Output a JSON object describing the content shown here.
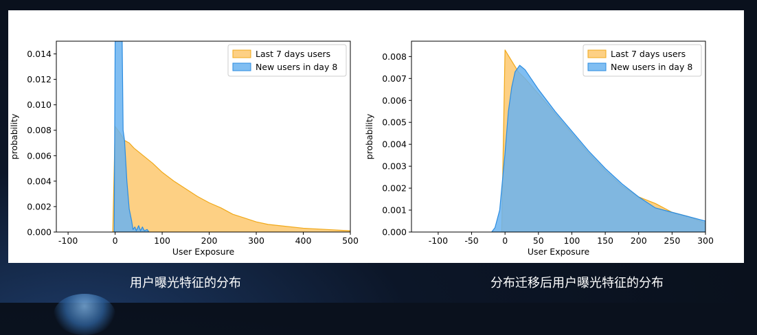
{
  "captions": {
    "left": "用户曝光特征的分布",
    "right": "分布迁移后用户曝光特征的分布"
  },
  "colors": {
    "orange_fill": "#fdc86e",
    "orange_line": "#f0a818",
    "blue_fill": "#6ab3f0",
    "blue_line": "#2b8ce0"
  },
  "chart_data": [
    {
      "type": "area",
      "xlabel": "User Exposure",
      "ylabel": "probability",
      "xlim": [
        -125,
        500
      ],
      "ylim": [
        0,
        0.015
      ],
      "xticks": [
        -100,
        0,
        100,
        200,
        300,
        400,
        500
      ],
      "xtick_labels": [
        "-100",
        "0",
        "100",
        "200",
        "300",
        "400",
        "500"
      ],
      "yticks": [
        0,
        0.002,
        0.004,
        0.006,
        0.008,
        0.01,
        0.012,
        0.014
      ],
      "ytick_labels": [
        "0.000",
        "0.002",
        "0.004",
        "0.006",
        "0.008",
        "0.010",
        "0.012",
        "0.014"
      ],
      "legend_position": "top-right",
      "series": [
        {
          "name": "Last 7 days users",
          "color_key": "orange",
          "points": [
            [
              -5,
              0
            ],
            [
              0,
              0.0083
            ],
            [
              10,
              0.0078
            ],
            [
              20,
              0.0072
            ],
            [
              30,
              0.007
            ],
            [
              40,
              0.0066
            ],
            [
              60,
              0.006
            ],
            [
              80,
              0.0054
            ],
            [
              100,
              0.0047
            ],
            [
              125,
              0.004
            ],
            [
              150,
              0.0034
            ],
            [
              175,
              0.0028
            ],
            [
              200,
              0.0023
            ],
            [
              225,
              0.0019
            ],
            [
              250,
              0.0014
            ],
            [
              275,
              0.0011
            ],
            [
              300,
              0.0008
            ],
            [
              325,
              0.0006
            ],
            [
              350,
              0.0005
            ],
            [
              400,
              0.0003
            ],
            [
              450,
              0.0002
            ],
            [
              500,
              0.0001
            ],
            [
              500,
              0
            ]
          ]
        },
        {
          "name": "New users in day 8",
          "color_key": "blue",
          "points": [
            [
              -2,
              0
            ],
            [
              0,
              0.015
            ],
            [
              15,
              0.015
            ],
            [
              17,
              0.008
            ],
            [
              20,
              0.0072
            ],
            [
              25,
              0.004
            ],
            [
              30,
              0.0018
            ],
            [
              35,
              0.0009
            ],
            [
              38,
              0.0002
            ],
            [
              42,
              0.0004
            ],
            [
              45,
              0.0001
            ],
            [
              50,
              0.0005
            ],
            [
              54,
              0.0001
            ],
            [
              58,
              0.0004
            ],
            [
              62,
              0.0001
            ],
            [
              68,
              0.0002
            ],
            [
              72,
              0
            ]
          ]
        }
      ]
    },
    {
      "type": "area",
      "xlabel": "User Exposure",
      "ylabel": "probability",
      "xlim": [
        -140,
        300
      ],
      "ylim": [
        0,
        0.0087
      ],
      "xticks": [
        -100,
        -50,
        0,
        50,
        100,
        150,
        200,
        250,
        300
      ],
      "xtick_labels": [
        "-100",
        "-50",
        "0",
        "50",
        "100",
        "150",
        "200",
        "250",
        "300"
      ],
      "yticks": [
        0,
        0.001,
        0.002,
        0.003,
        0.004,
        0.005,
        0.006,
        0.007,
        0.008
      ],
      "ytick_labels": [
        "0.000",
        "0.001",
        "0.002",
        "0.003",
        "0.004",
        "0.005",
        "0.006",
        "0.007",
        "0.008"
      ],
      "legend_position": "top-right",
      "series": [
        {
          "name": "Last 7 days users",
          "color_key": "orange",
          "points": [
            [
              -5,
              0
            ],
            [
              0,
              0.0083
            ],
            [
              10,
              0.0078
            ],
            [
              20,
              0.0073
            ],
            [
              30,
              0.007
            ],
            [
              50,
              0.0063
            ],
            [
              75,
              0.0054
            ],
            [
              100,
              0.0045
            ],
            [
              125,
              0.0036
            ],
            [
              150,
              0.0028
            ],
            [
              175,
              0.0021
            ],
            [
              200,
              0.0016
            ],
            [
              225,
              0.0013
            ],
            [
              250,
              0.0009
            ],
            [
              275,
              0.0007
            ],
            [
              300,
              0.0004
            ],
            [
              300,
              0
            ]
          ]
        },
        {
          "name": "New users in day 8",
          "color_key": "blue",
          "points": [
            [
              -20,
              0
            ],
            [
              -15,
              0.0002
            ],
            [
              -8,
              0.001
            ],
            [
              0,
              0.0036
            ],
            [
              5,
              0.0055
            ],
            [
              10,
              0.0066
            ],
            [
              15,
              0.0073
            ],
            [
              22,
              0.0076
            ],
            [
              30,
              0.0074
            ],
            [
              50,
              0.0065
            ],
            [
              75,
              0.0055
            ],
            [
              100,
              0.0046
            ],
            [
              125,
              0.0037
            ],
            [
              150,
              0.0029
            ],
            [
              175,
              0.0022
            ],
            [
              200,
              0.0016
            ],
            [
              225,
              0.0011
            ],
            [
              250,
              0.0009
            ],
            [
              275,
              0.0007
            ],
            [
              300,
              0.0005
            ],
            [
              300,
              0
            ]
          ]
        }
      ]
    }
  ]
}
